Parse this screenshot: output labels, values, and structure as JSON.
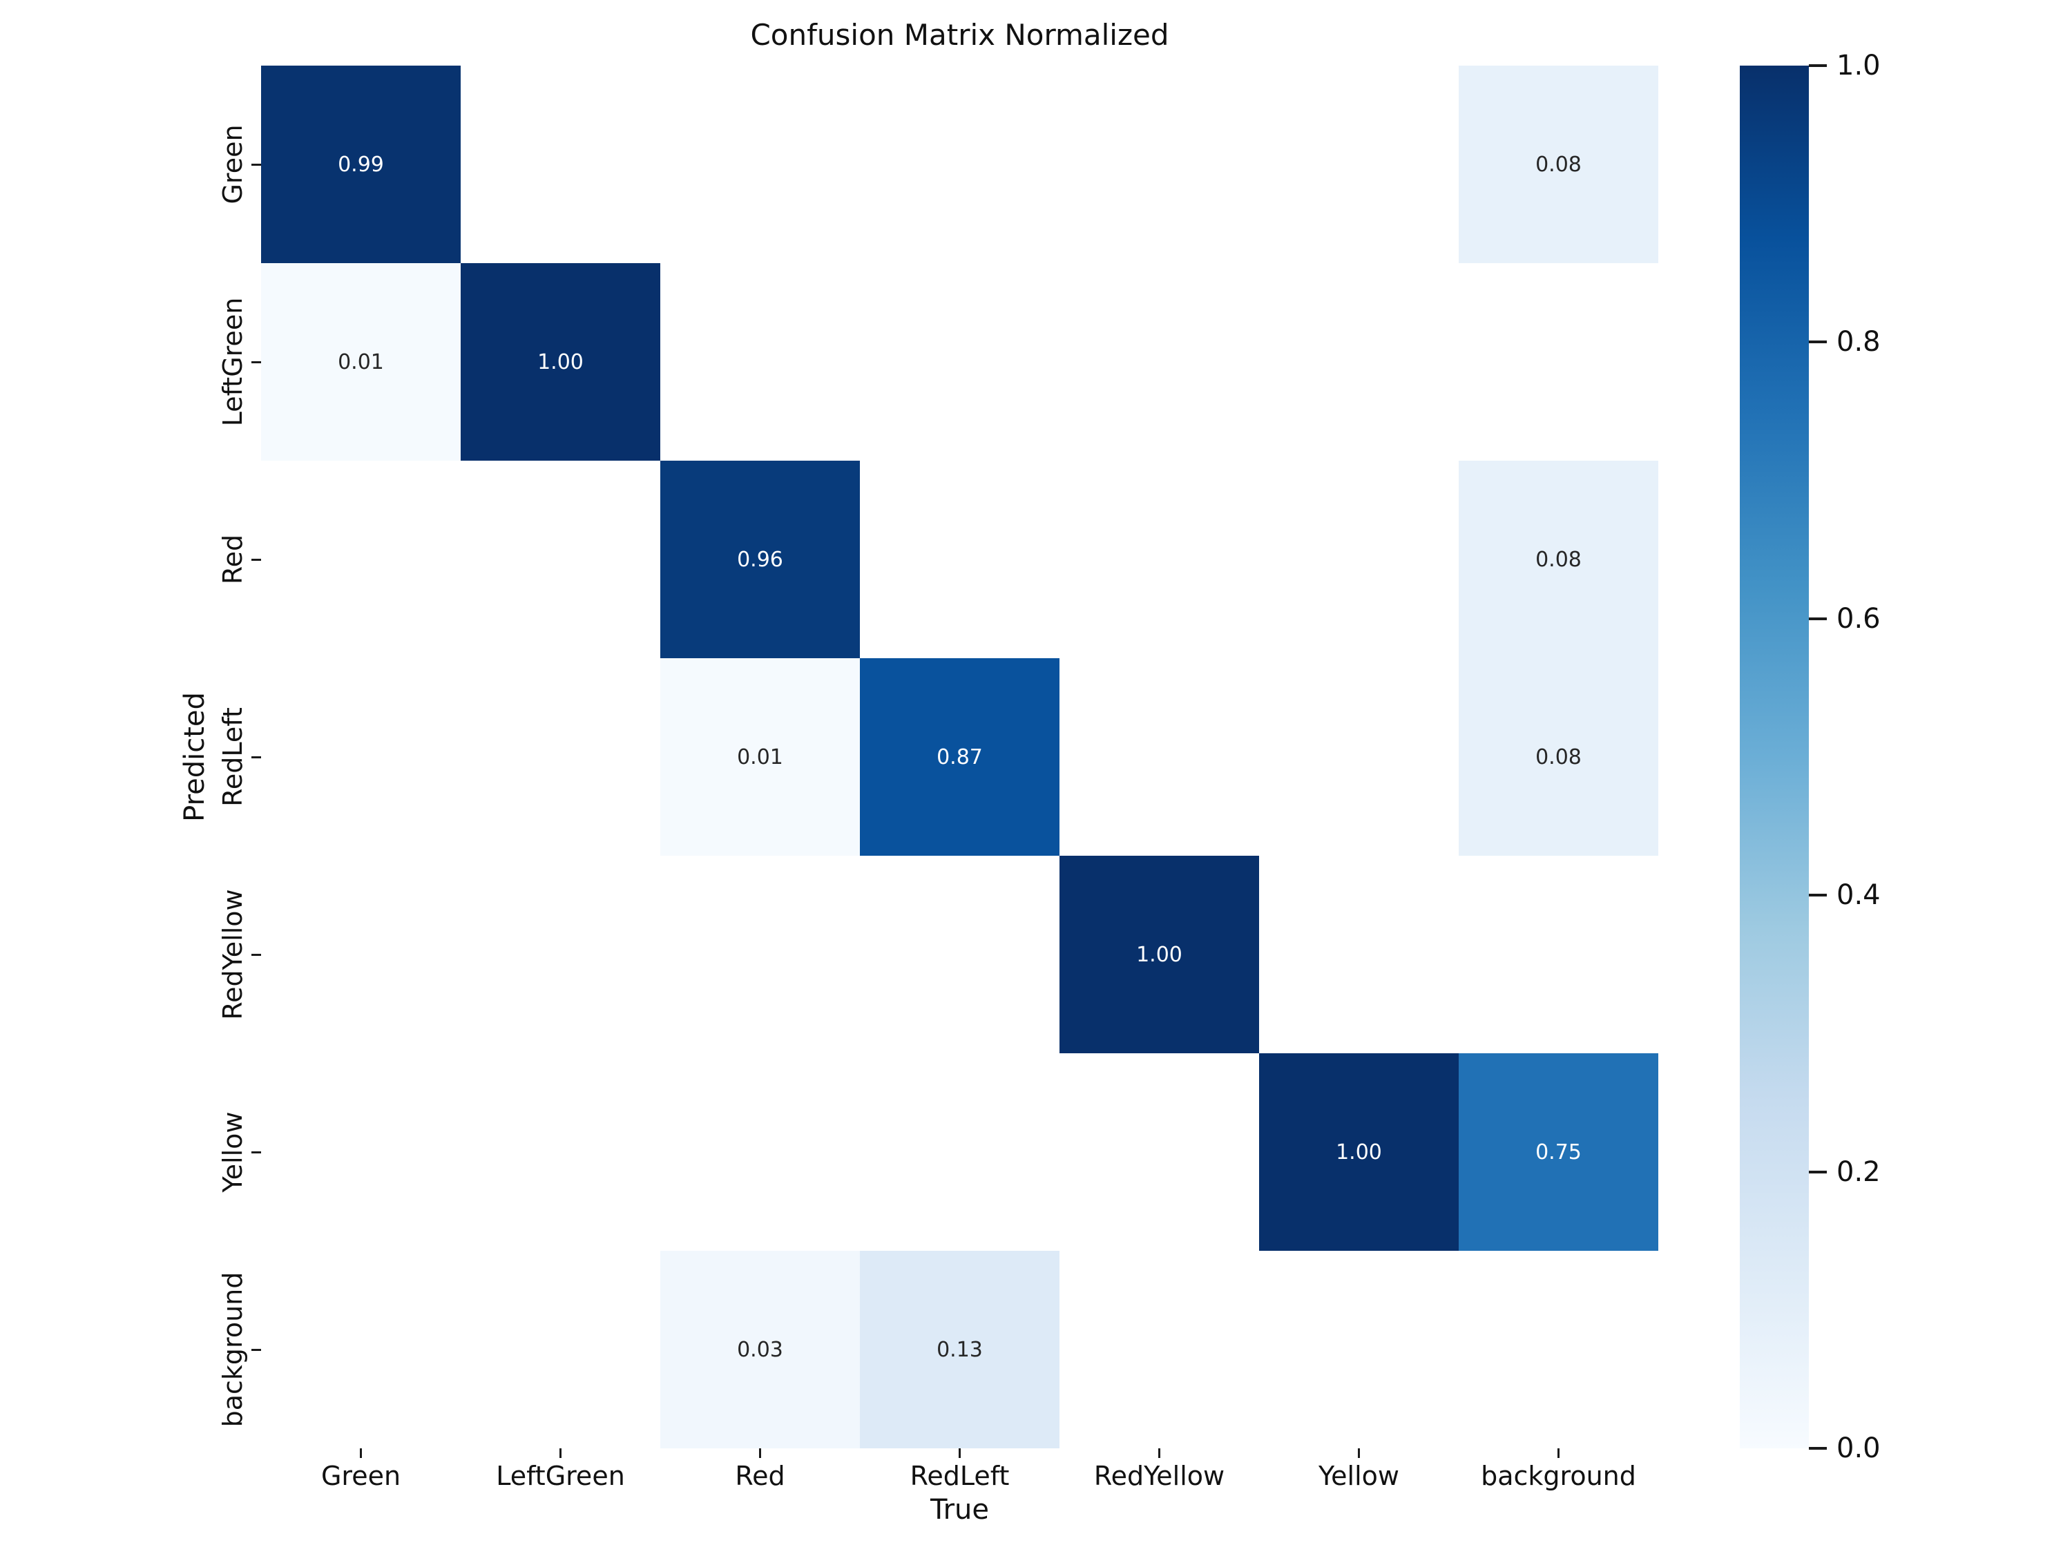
{
  "title": "Confusion Matrix Normalized",
  "axes": {
    "x_label": "True",
    "y_label": "Predicted"
  },
  "chart_data": {
    "type": "heatmap",
    "title": "Confusion Matrix Normalized",
    "xlabel": "True",
    "ylabel": "Predicted",
    "x_categories": [
      "Green",
      "LeftGreen",
      "Red",
      "RedLeft",
      "RedYellow",
      "Yellow",
      "background"
    ],
    "y_categories": [
      "Green",
      "LeftGreen",
      "Red",
      "RedLeft",
      "RedYellow",
      "Yellow",
      "background"
    ],
    "matrix": [
      [
        0.99,
        0,
        0,
        0,
        0,
        0,
        0.08
      ],
      [
        0.01,
        1.0,
        0,
        0,
        0,
        0,
        0
      ],
      [
        0,
        0,
        0.96,
        0,
        0,
        0,
        0.08
      ],
      [
        0,
        0,
        0.01,
        0.87,
        0,
        0,
        0.08
      ],
      [
        0,
        0,
        0,
        0,
        1.0,
        0,
        0
      ],
      [
        0,
        0,
        0,
        0,
        0,
        1.0,
        0.75
      ],
      [
        0,
        0,
        0.03,
        0.13,
        0,
        0,
        0
      ]
    ],
    "cell_label_format": "two decimals, blank when zero",
    "value_range": [
      0.0,
      1.0
    ],
    "grid": false,
    "colormap": {
      "name": "Blues",
      "stops": [
        [
          0.0,
          "#f7fbff"
        ],
        [
          0.125,
          "#deebf7"
        ],
        [
          0.25,
          "#c6dbef"
        ],
        [
          0.375,
          "#9ecae1"
        ],
        [
          0.5,
          "#6baed6"
        ],
        [
          0.625,
          "#4292c6"
        ],
        [
          0.75,
          "#2171b5"
        ],
        [
          0.875,
          "#08519c"
        ],
        [
          1.0,
          "#08306b"
        ]
      ],
      "empty_cell_color": "#ffffff"
    },
    "colorbar": {
      "position": "right",
      "min": 0.0,
      "max": 1.0,
      "tick_values": [
        1.0,
        0.8,
        0.6,
        0.4,
        0.2,
        0.0
      ]
    },
    "annotation_colors": {
      "on_dark": "#ffffff",
      "on_light": "#262626"
    }
  }
}
